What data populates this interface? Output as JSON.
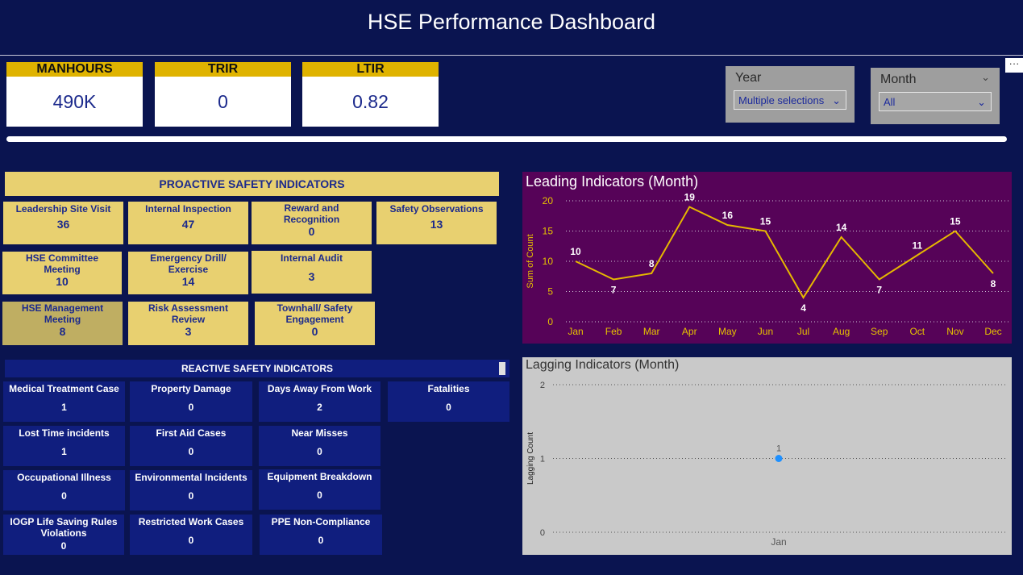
{
  "header": {
    "title": "HSE Performance Dashboard"
  },
  "kpis": [
    {
      "label": "MANHOURS",
      "value": "490K"
    },
    {
      "label": "TRIR",
      "value": "0"
    },
    {
      "label": "LTIR",
      "value": "0.82"
    }
  ],
  "filters": {
    "year": {
      "label": "Year",
      "selected": "Multiple selections"
    },
    "month": {
      "label": "Month",
      "selected": "All"
    }
  },
  "proactive": {
    "title": "PROACTIVE SAFETY INDICATORS",
    "items": [
      {
        "label": "Leadership Site Visit",
        "value": "36"
      },
      {
        "label": "Internal Inspection",
        "value": "47"
      },
      {
        "label": "Reward and Recognition",
        "value": "0"
      },
      {
        "label": "Safety Observations",
        "value": "13"
      },
      {
        "label": "HSE Committee Meeting",
        "value": "10"
      },
      {
        "label": "Emergency Drill/ Exercise",
        "value": "14"
      },
      {
        "label": "Internal Audit",
        "value": "3"
      },
      {
        "label": "HSE Management Meeting",
        "value": "8"
      },
      {
        "label": "Risk Assessment Review",
        "value": "3"
      },
      {
        "label": "Townhall/ Safety Engagement",
        "value": "0"
      }
    ]
  },
  "reactive": {
    "title": "REACTIVE SAFETY INDICATORS",
    "items": [
      {
        "label": "Medical Treatment Case",
        "value": "1"
      },
      {
        "label": "Property Damage",
        "value": "0"
      },
      {
        "label": "Days Away From Work",
        "value": "2"
      },
      {
        "label": "Fatalities",
        "value": "0"
      },
      {
        "label": "Lost Time incidents",
        "value": "1"
      },
      {
        "label": "First Aid Cases",
        "value": "0"
      },
      {
        "label": "Near Misses",
        "value": "0"
      },
      {
        "label": "Occupational Illness",
        "value": "0"
      },
      {
        "label": "Environmental Incidents",
        "value": "0"
      },
      {
        "label": "Equipment Breakdown",
        "value": "0"
      },
      {
        "label": "IOGP Life Saving Rules Violations",
        "value": "0"
      },
      {
        "label": "Restricted Work Cases",
        "value": "0"
      },
      {
        "label": "PPE Non-Compliance",
        "value": "0"
      }
    ]
  },
  "chart_data": [
    {
      "type": "line",
      "title": "Leading Indicators (Month)",
      "ylabel": "Sum of Count",
      "xlabel": "",
      "categories": [
        "Jan",
        "Feb",
        "Mar",
        "Apr",
        "May",
        "Jun",
        "Jul",
        "Aug",
        "Sep",
        "Oct",
        "Nov",
        "Dec"
      ],
      "values": [
        10,
        7,
        8,
        19,
        16,
        15,
        4,
        14,
        7,
        11,
        15,
        8
      ],
      "ylim": [
        0,
        20
      ],
      "yticks": [
        0,
        5,
        10,
        15,
        20
      ],
      "grid": true,
      "line_color": "#e6b800"
    },
    {
      "type": "scatter",
      "title": "Lagging Indicators (Month)",
      "ylabel": "Lagging Count",
      "xlabel": "",
      "categories": [
        "Jan"
      ],
      "values": [
        1
      ],
      "ylim": [
        0,
        2
      ],
      "yticks": [
        0,
        1,
        2
      ],
      "grid": true,
      "point_color": "#1e90ff"
    }
  ]
}
